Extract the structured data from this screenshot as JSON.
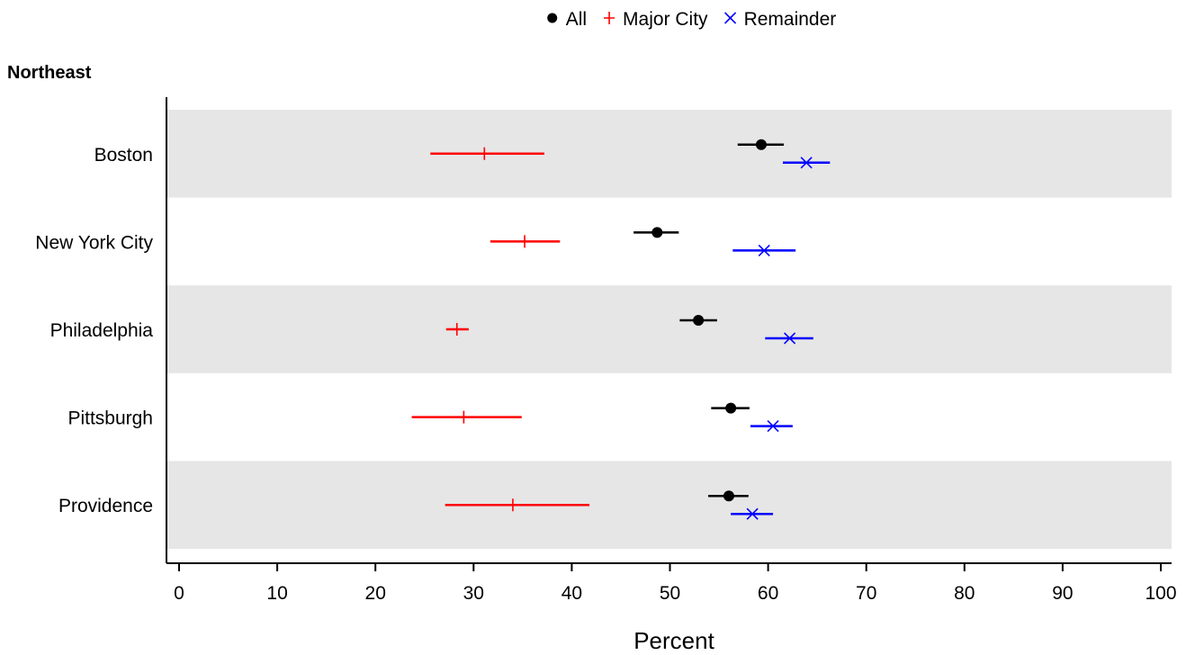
{
  "chart_data": {
    "type": "scatter",
    "panel_title": "Northeast",
    "xlabel": "Percent",
    "xlim": [
      -1,
      101
    ],
    "xticks": [
      "0",
      "10",
      "20",
      "30",
      "40",
      "50",
      "60",
      "70",
      "80",
      "90",
      "100"
    ],
    "categories": [
      "Boston",
      "New York City",
      "Philadelphia",
      "Pittsburgh",
      "Providence"
    ],
    "legend_position": "top-center",
    "grid": false,
    "series": [
      {
        "name": "All",
        "marker": "dot",
        "color": "#000000",
        "points": [
          {
            "value": 59.3,
            "low": 56.9,
            "high": 61.6
          },
          {
            "value": 48.7,
            "low": 46.3,
            "high": 50.9
          },
          {
            "value": 52.9,
            "low": 51.0,
            "high": 54.8
          },
          {
            "value": 56.2,
            "low": 54.2,
            "high": 58.1
          },
          {
            "value": 56.0,
            "low": 53.9,
            "high": 58.0
          }
        ]
      },
      {
        "name": "Major City",
        "marker": "plus",
        "color": "#ff0000",
        "points": [
          {
            "value": 31.1,
            "low": 25.6,
            "high": 37.2
          },
          {
            "value": 35.2,
            "low": 31.7,
            "high": 38.8
          },
          {
            "value": 28.3,
            "low": 27.2,
            "high": 29.5
          },
          {
            "value": 29.0,
            "low": 23.7,
            "high": 34.9
          },
          {
            "value": 34.0,
            "low": 27.1,
            "high": 41.8
          }
        ]
      },
      {
        "name": "Remainder",
        "marker": "x",
        "color": "#0000ff",
        "points": [
          {
            "value": 63.9,
            "low": 61.5,
            "high": 66.3
          },
          {
            "value": 59.6,
            "low": 56.4,
            "high": 62.8
          },
          {
            "value": 62.2,
            "low": 59.7,
            "high": 64.6
          },
          {
            "value": 60.5,
            "low": 58.2,
            "high": 62.5
          },
          {
            "value": 58.4,
            "low": 56.2,
            "high": 60.5
          }
        ]
      }
    ]
  }
}
